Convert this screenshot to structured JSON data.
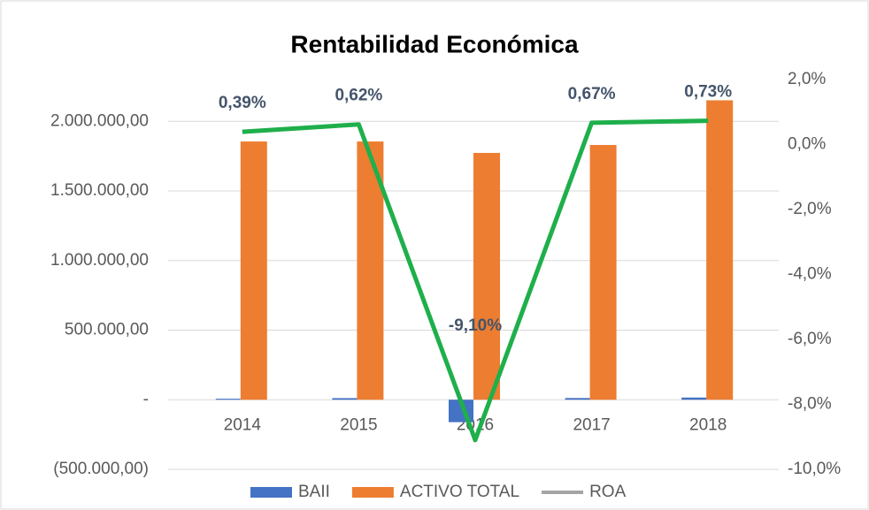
{
  "chart_data": {
    "type": "bar_line",
    "title": "Rentabilidad Económica",
    "categories": [
      "2014",
      "2015",
      "2016",
      "2017",
      "2018"
    ],
    "series": [
      {
        "name": "BAII",
        "color": "#4472c4",
        "values": [
          7200,
          11500,
          -161000,
          12300,
          15700
        ]
      },
      {
        "name": "ACTIVO TOTAL",
        "color": "#ed7d31",
        "values": [
          1855000,
          1855000,
          1773000,
          1830000,
          2151000
        ]
      },
      {
        "name": "ROA",
        "color": "#1faf4b",
        "legend_color": "#a5a5a5",
        "axis": "y2",
        "values": [
          0.39,
          0.62,
          -9.1,
          0.67,
          0.73
        ],
        "value_labels": [
          "0,39%",
          "0,62%",
          "-9,10%",
          "0,67%",
          "0,73%"
        ]
      }
    ],
    "ylim": [
      -500000,
      2300000
    ],
    "yticks": [
      {
        "value": -500000,
        "label": "(500.000,00)"
      },
      {
        "value": 0,
        "label": "-"
      },
      {
        "value": 500000,
        "label": "500.000,00"
      },
      {
        "value": 1000000,
        "label": "1.000.000,00"
      },
      {
        "value": 1500000,
        "label": "1.500.000,00"
      },
      {
        "value": 2000000,
        "label": "2.000.000,00"
      }
    ],
    "y2lim": [
      -10,
      2
    ],
    "y2ticks": [
      {
        "value": -10,
        "label": "-10,0%"
      },
      {
        "value": -8,
        "label": "-8,0%"
      },
      {
        "value": -6,
        "label": "-6,0%"
      },
      {
        "value": -4,
        "label": "-4,0%"
      },
      {
        "value": -2,
        "label": "-2,0%"
      },
      {
        "value": 0,
        "label": "0,0%"
      },
      {
        "value": 2,
        "label": "2,0%"
      }
    ],
    "grid": true,
    "legend": "bottom"
  }
}
